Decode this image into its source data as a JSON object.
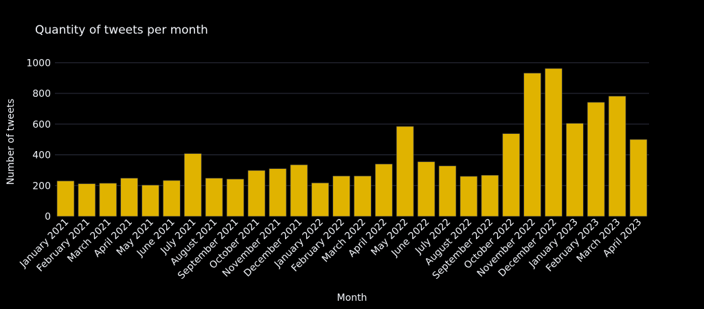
{
  "colors": {
    "background": "#000000",
    "bar_fill": "#e0b300",
    "bar_outline": "#4a4a4a",
    "grid": "#2e3140",
    "text": "#f2f5fa"
  },
  "chart_data": {
    "type": "bar",
    "title": "Quantity of tweets per month",
    "xlabel": "Month",
    "ylabel": "Number of tweets",
    "ylim": [
      0,
      1140
    ],
    "yticks": [
      0,
      200,
      400,
      600,
      800,
      1000
    ],
    "ytick_labels": [
      "0",
      "200",
      "400",
      "600",
      "800",
      "1000"
    ],
    "grid": true,
    "legend": "none",
    "categories": [
      "January 2021",
      "February 2021",
      "March 2021",
      "April 2021",
      "May 2021",
      "June 2021",
      "July 2021",
      "August 2021",
      "September 2021",
      "October 2021",
      "November 2021",
      "December 2021",
      "January 2022",
      "February 2022",
      "March 2022",
      "April 2022",
      "May 2022",
      "June 2022",
      "July 2022",
      "August 2022",
      "September 2022",
      "October 2022",
      "November 2022",
      "December 2022",
      "January 2023",
      "February 2023",
      "March 2023",
      "April 2023"
    ],
    "values": [
      230,
      212,
      215,
      248,
      203,
      233,
      408,
      248,
      242,
      298,
      310,
      335,
      217,
      262,
      262,
      340,
      585,
      355,
      328,
      260,
      267,
      538,
      932,
      962,
      605,
      742,
      782,
      500
    ]
  }
}
